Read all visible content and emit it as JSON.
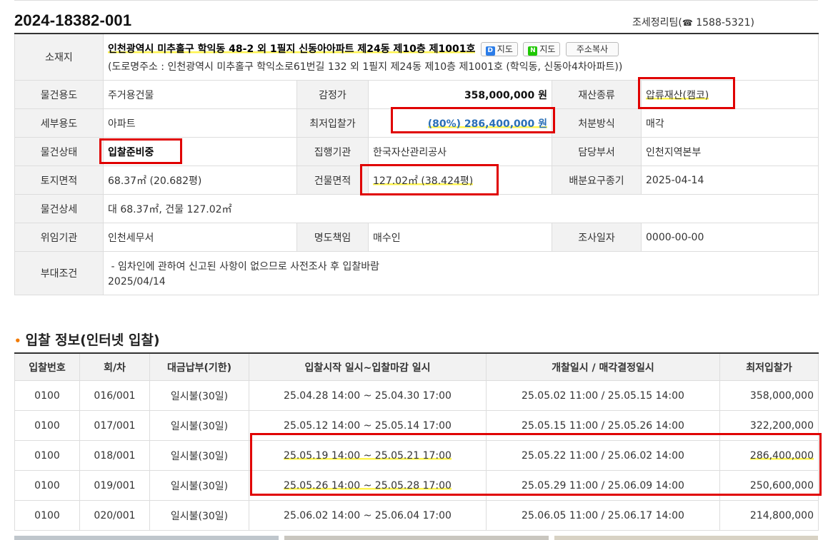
{
  "header": {
    "case_number": "2024-18382-001",
    "team": "조세정리팀(",
    "tel_icon": "☎",
    "phone": " 1588-5321)"
  },
  "info": {
    "location_label": "소재지",
    "address_main": "인천광역시 미추홀구 학익동 48-2 외 1필지 신동아아파트 제24동 제10층 제1001호",
    "daum_map_label": "지도",
    "naver_map_label": "지도",
    "copy_address_label": "주소복사",
    "address_road": "(도로명주소 : 인천광역시 미추홀구 학익소로61번길 132 외 1필지 제24동 제10층 제1001호 (학익동, 신동아4차아파트))",
    "rows": {
      "use_label": "물건용도",
      "use": "주거용건물",
      "appraisal_label": "감정가",
      "appraisal": "358,000,000 원",
      "property_type_label": "재산종류",
      "property_type": "압류재산(캠코)",
      "detail_use_label": "세부용도",
      "detail_use": "아파트",
      "min_bid_label": "최저입찰가",
      "min_bid": "(80%) 286,400,000 원",
      "disposal_label": "처분방식",
      "disposal": "매각",
      "status_label": "물건상태",
      "status": "입찰준비중",
      "executor_label": "집행기관",
      "executor": "한국자산관리공사",
      "dept_label": "담당부서",
      "dept": "인천지역본부",
      "land_area_label": "토지면적",
      "land_area": "68.37㎡ (20.682평)",
      "building_area_label": "건물면적",
      "building_area": "127.02㎡ (38.424평)",
      "distribution_label": "배분요구종기",
      "distribution": "2025-04-14",
      "detail_label": "물건상세",
      "detail": "대 68.37㎡, 건물 127.02㎡",
      "delegate_label": "위임기관",
      "delegate": "인천세무서",
      "transfer_label": "명도책임",
      "transfer": "매수인",
      "survey_label": "조사일자",
      "survey": "0000-00-00",
      "conditions_label": "부대조건",
      "conditions_line1": " - 임차인에 관하여 신고된 사항이 없으므로 사전조사 후 입찰바람",
      "conditions_line2": "2025/04/14"
    }
  },
  "bid_section": {
    "bullet": "•",
    "title": "입찰 정보(인터넷 입찰)",
    "columns": [
      "입찰번호",
      "회/차",
      "대금납부(기한)",
      "입찰시작 일시~입찰마감 일시",
      "개찰일시 / 매각결정일시",
      "최저입찰가"
    ],
    "rows": [
      [
        "0100",
        "016/001",
        "일시불(30일)",
        "25.04.28 14:00 ~ 25.04.30 17:00",
        "25.05.02 11:00 / 25.05.15 14:00",
        "358,000,000"
      ],
      [
        "0100",
        "017/001",
        "일시불(30일)",
        "25.05.12 14:00 ~ 25.05.14 17:00",
        "25.05.15 11:00 / 25.05.26 14:00",
        "322,200,000"
      ],
      [
        "0100",
        "018/001",
        "일시불(30일)",
        "25.05.19 14:00 ~ 25.05.21 17:00",
        "25.05.22 11:00 / 25.06.02 14:00",
        "286,400,000"
      ],
      [
        "0100",
        "019/001",
        "일시불(30일)",
        "25.05.26 14:00 ~ 25.05.28 17:00",
        "25.05.29 11:00 / 25.06.09 14:00",
        "250,600,000"
      ],
      [
        "0100",
        "020/001",
        "일시불(30일)",
        "25.06.02 14:00 ~ 25.06.04 17:00",
        "25.06.05 11:00 / 25.06.17 14:00",
        "214,800,000"
      ]
    ]
  },
  "colors": {
    "highlight_box": "#e00000",
    "highlighter": "#fff44f",
    "min_price_text": "#2a6fb6",
    "bullet": "#f27a00"
  }
}
